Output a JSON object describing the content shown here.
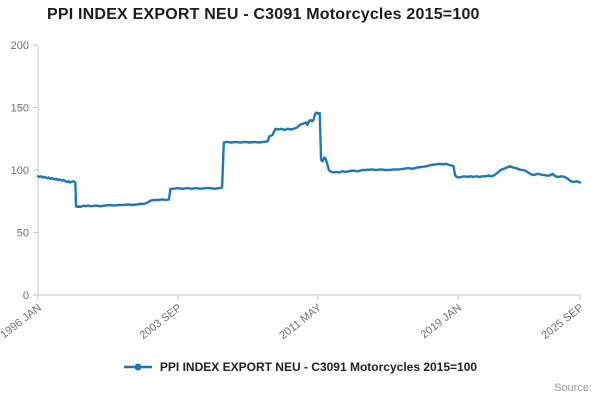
{
  "title": "PPI INDEX EXPORT NEU - C3091 Motorcycles 2015=100",
  "legend": {
    "label": "PPI INDEX EXPORT NEU - C3091 Motorcycles 2015=100"
  },
  "source": {
    "label": "Source:"
  },
  "colors": {
    "line": "#1f77b4",
    "axis": "#c8c8c8",
    "tick_text": "#707070",
    "title_text": "#1c1c1c"
  },
  "chart_data": {
    "type": "line",
    "title": "PPI INDEX EXPORT NEU - C3091 Motorcycles 2015=100",
    "xlabel": "",
    "ylabel": "",
    "grid": false,
    "legend_position": "bottom",
    "xlim": [
      1996.0,
      2025.67
    ],
    "ylim": [
      0,
      200
    ],
    "y_ticks": [
      0,
      50,
      100,
      150,
      200
    ],
    "x_ticks": [
      {
        "pos": 1996.0,
        "label": "1996 JAN"
      },
      {
        "pos": 2003.67,
        "label": "2003 SEP"
      },
      {
        "pos": 2011.33,
        "label": "2011 MAY"
      },
      {
        "pos": 2019.0,
        "label": "2019 JAN"
      },
      {
        "pos": 2025.67,
        "label": "2025 SEP"
      }
    ],
    "series": [
      {
        "name": "PPI INDEX EXPORT NEU - C3091 Motorcycles 2015=100",
        "points": [
          [
            1996.0,
            95
          ],
          [
            1996.08,
            94.5
          ],
          [
            1996.17,
            95
          ],
          [
            1996.25,
            94
          ],
          [
            1996.33,
            94.5
          ],
          [
            1996.42,
            94
          ],
          [
            1996.5,
            93.5
          ],
          [
            1996.58,
            94
          ],
          [
            1996.67,
            93
          ],
          [
            1996.75,
            93.5
          ],
          [
            1996.83,
            93
          ],
          [
            1996.92,
            92.5
          ],
          [
            1997.0,
            93
          ],
          [
            1997.08,
            92
          ],
          [
            1997.17,
            92.5
          ],
          [
            1997.25,
            92
          ],
          [
            1997.33,
            91.5
          ],
          [
            1997.42,
            92
          ],
          [
            1997.5,
            91
          ],
          [
            1997.58,
            90.5
          ],
          [
            1997.67,
            91
          ],
          [
            1997.75,
            90
          ],
          [
            1997.83,
            90.5
          ],
          [
            1997.92,
            91
          ],
          [
            1998.0,
            90.5
          ],
          [
            1998.04,
            90
          ],
          [
            1998.08,
            71
          ],
          [
            1998.17,
            70.5
          ],
          [
            1998.25,
            71
          ],
          [
            1998.33,
            70.5
          ],
          [
            1998.42,
            71
          ],
          [
            1998.5,
            71.5
          ],
          [
            1998.58,
            71
          ],
          [
            1998.75,
            71.5
          ],
          [
            1998.92,
            71
          ],
          [
            1999.17,
            71.5
          ],
          [
            1999.42,
            71
          ],
          [
            1999.67,
            71.5
          ],
          [
            1999.92,
            72
          ],
          [
            2000.17,
            71.5
          ],
          [
            2000.42,
            72
          ],
          [
            2000.67,
            72
          ],
          [
            2000.92,
            72.5
          ],
          [
            2001.17,
            72
          ],
          [
            2001.42,
            72.5
          ],
          [
            2001.58,
            73
          ],
          [
            2001.83,
            73
          ],
          [
            2002.0,
            74
          ],
          [
            2002.17,
            75.5
          ],
          [
            2002.33,
            76
          ],
          [
            2002.58,
            76
          ],
          [
            2002.83,
            76.5
          ],
          [
            2003.0,
            76
          ],
          [
            2003.17,
            76.5
          ],
          [
            2003.25,
            85
          ],
          [
            2003.42,
            85
          ],
          [
            2003.67,
            85.5
          ],
          [
            2003.92,
            85
          ],
          [
            2004.17,
            85.5
          ],
          [
            2004.42,
            85
          ],
          [
            2004.67,
            85.5
          ],
          [
            2004.92,
            85
          ],
          [
            2005.17,
            85.5
          ],
          [
            2005.42,
            85.5
          ],
          [
            2005.67,
            85
          ],
          [
            2005.92,
            85.5
          ],
          [
            2006.08,
            86
          ],
          [
            2006.17,
            122
          ],
          [
            2006.33,
            122.5
          ],
          [
            2006.58,
            122
          ],
          [
            2006.83,
            122.5
          ],
          [
            2007.08,
            122
          ],
          [
            2007.33,
            122.5
          ],
          [
            2007.58,
            122
          ],
          [
            2007.83,
            122.5
          ],
          [
            2008.08,
            122
          ],
          [
            2008.33,
            122.5
          ],
          [
            2008.58,
            123
          ],
          [
            2008.67,
            127
          ],
          [
            2008.83,
            128
          ],
          [
            2009.0,
            133
          ],
          [
            2009.17,
            132.5
          ],
          [
            2009.33,
            133
          ],
          [
            2009.5,
            132
          ],
          [
            2009.67,
            133
          ],
          [
            2009.83,
            132.5
          ],
          [
            2010.0,
            133
          ],
          [
            2010.17,
            134
          ],
          [
            2010.33,
            136
          ],
          [
            2010.5,
            137
          ],
          [
            2010.67,
            138
          ],
          [
            2010.75,
            136
          ],
          [
            2010.83,
            139
          ],
          [
            2010.92,
            140
          ],
          [
            2011.0,
            139
          ],
          [
            2011.08,
            140
          ],
          [
            2011.17,
            145
          ],
          [
            2011.25,
            146
          ],
          [
            2011.33,
            145
          ],
          [
            2011.42,
            145.5
          ],
          [
            2011.5,
            108
          ],
          [
            2011.58,
            107
          ],
          [
            2011.67,
            110
          ],
          [
            2011.75,
            109
          ],
          [
            2011.83,
            105
          ],
          [
            2011.92,
            100
          ],
          [
            2012.0,
            99
          ],
          [
            2012.17,
            98
          ],
          [
            2012.33,
            98.5
          ],
          [
            2012.5,
            98
          ],
          [
            2012.67,
            99
          ],
          [
            2012.83,
            98.5
          ],
          [
            2013.0,
            99
          ],
          [
            2013.25,
            99.5
          ],
          [
            2013.5,
            99
          ],
          [
            2013.75,
            100
          ],
          [
            2014.0,
            100
          ],
          [
            2014.25,
            100.5
          ],
          [
            2014.5,
            100
          ],
          [
            2014.75,
            100.5
          ],
          [
            2015.0,
            100
          ],
          [
            2015.25,
            100
          ],
          [
            2015.5,
            100.5
          ],
          [
            2015.75,
            100.5
          ],
          [
            2016.0,
            101
          ],
          [
            2016.25,
            101.5
          ],
          [
            2016.5,
            101
          ],
          [
            2016.75,
            102
          ],
          [
            2017.0,
            102.5
          ],
          [
            2017.25,
            103
          ],
          [
            2017.5,
            104
          ],
          [
            2017.75,
            104.5
          ],
          [
            2018.0,
            105
          ],
          [
            2018.17,
            104.5
          ],
          [
            2018.33,
            105
          ],
          [
            2018.5,
            104
          ],
          [
            2018.67,
            103.5
          ],
          [
            2018.75,
            103
          ],
          [
            2018.83,
            96
          ],
          [
            2018.92,
            94.5
          ],
          [
            2019.0,
            94
          ],
          [
            2019.17,
            94.5
          ],
          [
            2019.33,
            95
          ],
          [
            2019.5,
            94.5
          ],
          [
            2019.67,
            95
          ],
          [
            2019.83,
            94.5
          ],
          [
            2020.0,
            95
          ],
          [
            2020.17,
            94.5
          ],
          [
            2020.33,
            95
          ],
          [
            2020.5,
            95
          ],
          [
            2020.67,
            95.5
          ],
          [
            2020.83,
            95
          ],
          [
            2021.0,
            96
          ],
          [
            2021.17,
            98
          ],
          [
            2021.33,
            100
          ],
          [
            2021.5,
            101
          ],
          [
            2021.67,
            102
          ],
          [
            2021.83,
            103
          ],
          [
            2022.0,
            102
          ],
          [
            2022.17,
            101.5
          ],
          [
            2022.33,
            100.5
          ],
          [
            2022.5,
            100
          ],
          [
            2022.67,
            99.5
          ],
          [
            2022.83,
            98
          ],
          [
            2023.0,
            96.5
          ],
          [
            2023.17,
            96
          ],
          [
            2023.33,
            97
          ],
          [
            2023.5,
            96.5
          ],
          [
            2023.67,
            96
          ],
          [
            2023.83,
            95.5
          ],
          [
            2024.0,
            95.5
          ],
          [
            2024.17,
            97
          ],
          [
            2024.33,
            95
          ],
          [
            2024.5,
            94.5
          ],
          [
            2024.67,
            95
          ],
          [
            2024.83,
            94.5
          ],
          [
            2025.0,
            93
          ],
          [
            2025.17,
            91
          ],
          [
            2025.33,
            90.5
          ],
          [
            2025.5,
            91
          ],
          [
            2025.67,
            90
          ]
        ]
      }
    ]
  }
}
